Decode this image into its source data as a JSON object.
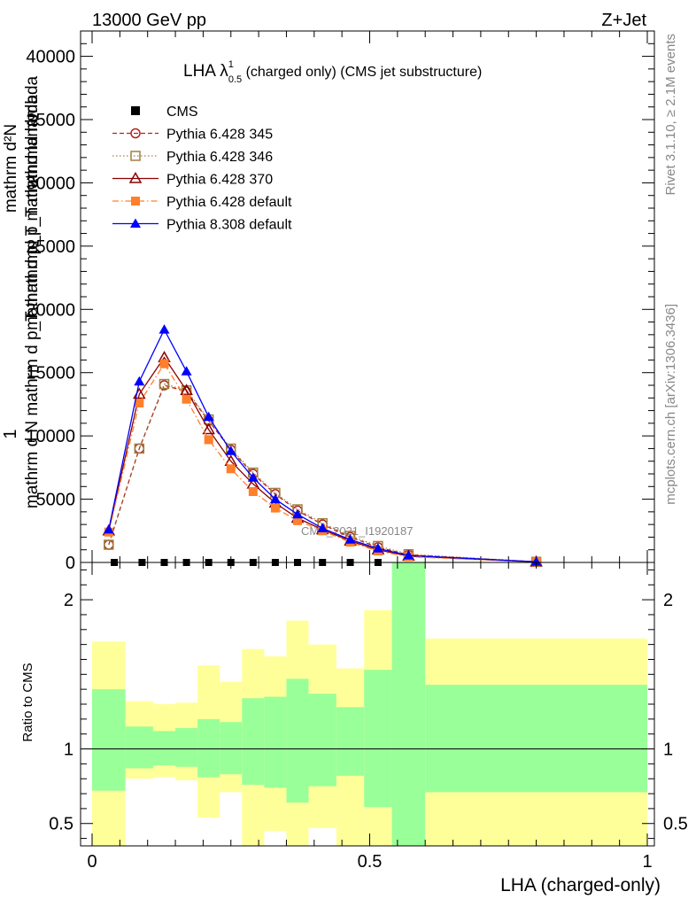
{
  "header": {
    "left": "13000 GeV pp",
    "right": "Z+Jet"
  },
  "side_labels": {
    "rivet": "Rivet 3.1.10, ≥ 2.1M events",
    "mcplots": "mcplots.cern.ch [arXiv:1306.3436]"
  },
  "main_title": {
    "prefix": "LHA λ",
    "sup": "1",
    "sub": "0.5",
    "suffix": " (charged only) (CMS jet substructure)"
  },
  "watermark": "CMS_2021_I1920187",
  "chart_data": [
    {
      "type": "line",
      "ylabel_lines": [
        "1",
        "mathrm d N mathrm d p_T mathrmd p_T mathrmd lambda",
        "mathrm d²N",
        "mathrm d p_T mathrmd lambda"
      ],
      "ylim": [
        0,
        42000
      ],
      "y_ticks": [
        0,
        5000,
        10000,
        15000,
        20000,
        25000,
        30000,
        35000,
        40000
      ],
      "xlim": [
        0,
        1
      ],
      "legend_placement": "top-left",
      "series": [
        {
          "name": "CMS",
          "color": "#000000",
          "marker": "square-filled",
          "line": "none",
          "x": [
            0.04,
            0.09,
            0.13,
            0.17,
            0.21,
            0.25,
            0.29,
            0.33,
            0.37,
            0.415,
            0.465,
            0.515
          ],
          "y": [
            0,
            0,
            0,
            0,
            0,
            0,
            0,
            0,
            0,
            0,
            0,
            0
          ]
        },
        {
          "name": "Pythia 6.428 345",
          "color": "#b22222",
          "marker": "circle-open",
          "line": "dashed",
          "x": [
            0.03,
            0.085,
            0.13,
            0.17,
            0.21,
            0.25,
            0.29,
            0.33,
            0.37,
            0.415,
            0.465,
            0.515,
            0.57,
            0.8
          ],
          "y": [
            1400,
            9000,
            14000,
            13500,
            11200,
            8900,
            7000,
            5400,
            4100,
            3000,
            2000,
            1200,
            600,
            50
          ]
        },
        {
          "name": "Pythia 6.428 346",
          "color": "#a08040",
          "marker": "square-open",
          "line": "dotted",
          "x": [
            0.03,
            0.085,
            0.13,
            0.17,
            0.21,
            0.25,
            0.29,
            0.33,
            0.37,
            0.415,
            0.465,
            0.515,
            0.57,
            0.8
          ],
          "y": [
            1400,
            9000,
            14100,
            13600,
            11300,
            9000,
            7100,
            5500,
            4200,
            3100,
            2100,
            1300,
            650,
            50
          ]
        },
        {
          "name": "Pythia 6.428 370",
          "color": "#8b0000",
          "marker": "triangle-open",
          "line": "solid",
          "x": [
            0.03,
            0.085,
            0.13,
            0.17,
            0.21,
            0.25,
            0.29,
            0.33,
            0.37,
            0.415,
            0.465,
            0.515,
            0.57,
            0.8
          ],
          "y": [
            2500,
            13300,
            16200,
            13600,
            10500,
            8000,
            6200,
            4700,
            3500,
            2600,
            1700,
            1000,
            500,
            40
          ]
        },
        {
          "name": "Pythia 6.428 default",
          "color": "#ff7f2a",
          "marker": "square-filled",
          "line": "dashdot",
          "x": [
            0.03,
            0.085,
            0.13,
            0.17,
            0.21,
            0.25,
            0.29,
            0.33,
            0.37,
            0.415,
            0.465,
            0.515,
            0.57,
            0.8
          ],
          "y": [
            2400,
            12600,
            15700,
            12900,
            9700,
            7400,
            5600,
            4300,
            3300,
            2500,
            1600,
            900,
            450,
            40
          ]
        },
        {
          "name": "Pythia 8.308 default",
          "color": "#0000ff",
          "marker": "triangle-filled",
          "line": "solid",
          "x": [
            0.03,
            0.085,
            0.13,
            0.17,
            0.21,
            0.25,
            0.29,
            0.33,
            0.37,
            0.415,
            0.465,
            0.515,
            0.57,
            0.8
          ],
          "y": [
            2600,
            14300,
            18400,
            15100,
            11500,
            8800,
            6700,
            5000,
            3800,
            2700,
            1800,
            1100,
            550,
            50
          ]
        }
      ]
    },
    {
      "type": "area",
      "ylabel": "Ratio to CMS",
      "xlabel": "LHA (charged-only)",
      "ylim": [
        0.35,
        2.25
      ],
      "y_ticks": [
        0.5,
        1,
        2
      ],
      "y_tick_labels": [
        "0.5",
        "1",
        "2"
      ],
      "xlim": [
        0,
        1
      ],
      "x_ticks": [
        0,
        0.5,
        1
      ],
      "x_tick_labels": [
        "0",
        "0.5",
        "1"
      ],
      "reference_line": 1,
      "band_colors": {
        "inner": "#99ff99",
        "outer": "#ffff99"
      },
      "bins": [
        {
          "x0": 0.0,
          "x1": 0.06,
          "in_lo": 0.72,
          "in_hi": 1.4,
          "out_lo": 0.35,
          "out_hi": 1.72
        },
        {
          "x0": 0.06,
          "x1": 0.11,
          "in_lo": 0.87,
          "in_hi": 1.15,
          "out_lo": 0.8,
          "out_hi": 1.32
        },
        {
          "x0": 0.11,
          "x1": 0.15,
          "in_lo": 0.89,
          "in_hi": 1.12,
          "out_lo": 0.81,
          "out_hi": 1.3
        },
        {
          "x0": 0.15,
          "x1": 0.19,
          "in_lo": 0.88,
          "in_hi": 1.14,
          "out_lo": 0.79,
          "out_hi": 1.31
        },
        {
          "x0": 0.19,
          "x1": 0.23,
          "in_lo": 0.81,
          "in_hi": 1.2,
          "out_lo": 0.54,
          "out_hi": 1.56
        },
        {
          "x0": 0.23,
          "x1": 0.27,
          "in_lo": 0.83,
          "in_hi": 1.18,
          "out_lo": 0.71,
          "out_hi": 1.45
        },
        {
          "x0": 0.27,
          "x1": 0.31,
          "in_lo": 0.76,
          "in_hi": 1.34,
          "out_lo": 0.35,
          "out_hi": 1.67
        },
        {
          "x0": 0.31,
          "x1": 0.35,
          "in_lo": 0.74,
          "in_hi": 1.35,
          "out_lo": 0.45,
          "out_hi": 1.62
        },
        {
          "x0": 0.35,
          "x1": 0.39,
          "in_lo": 0.64,
          "in_hi": 1.47,
          "out_lo": 0.35,
          "out_hi": 1.86
        },
        {
          "x0": 0.39,
          "x1": 0.44,
          "in_lo": 0.75,
          "in_hi": 1.37,
          "out_lo": 0.47,
          "out_hi": 1.7
        },
        {
          "x0": 0.44,
          "x1": 0.49,
          "in_lo": 0.82,
          "in_hi": 1.28,
          "out_lo": 0.35,
          "out_hi": 1.54
        },
        {
          "x0": 0.49,
          "x1": 0.54,
          "in_lo": 0.61,
          "in_hi": 1.53,
          "out_lo": 0.35,
          "out_hi": 1.93
        },
        {
          "x0": 0.54,
          "x1": 0.6,
          "in_lo": 0.35,
          "in_hi": 2.25,
          "out_lo": 0.35,
          "out_hi": 2.25
        },
        {
          "x0": 0.6,
          "x1": 1.0,
          "in_lo": 0.71,
          "in_hi": 1.43,
          "out_lo": 0.35,
          "out_hi": 1.74
        }
      ]
    }
  ]
}
